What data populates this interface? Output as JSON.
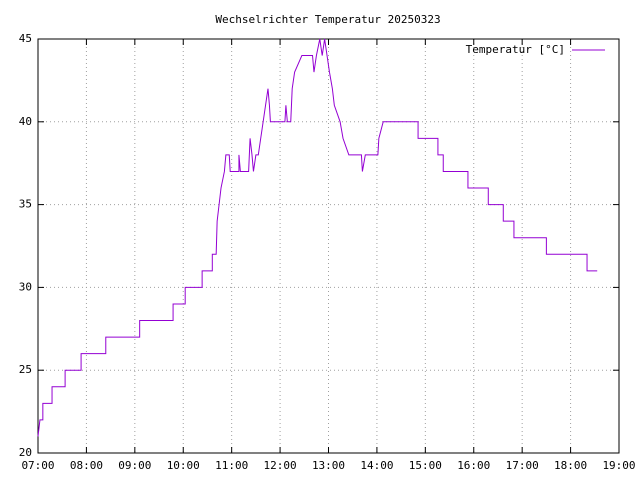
{
  "chart_data": {
    "type": "line",
    "title": "Wechselrichter Temperatur 20250323",
    "x": [
      7.0,
      7.04,
      7.1,
      7.1,
      7.29,
      7.29,
      7.56,
      7.56,
      7.89,
      7.89,
      8.4,
      8.4,
      9.1,
      9.1,
      9.79,
      9.79,
      10.04,
      10.04,
      10.39,
      10.39,
      10.6,
      10.6,
      10.68,
      10.7,
      10.78,
      10.85,
      10.88,
      10.95,
      10.97,
      11.15,
      11.15,
      11.18,
      11.35,
      11.38,
      11.42,
      11.45,
      11.5,
      11.55,
      11.6,
      11.65,
      11.7,
      11.75,
      11.78,
      11.8,
      12.1,
      12.12,
      12.15,
      12.22,
      12.25,
      12.3,
      12.45,
      12.67,
      12.7,
      12.75,
      12.82,
      12.87,
      12.92,
      12.97,
      13.02,
      13.08,
      13.12,
      13.24,
      13.3,
      13.42,
      13.68,
      13.7,
      13.76,
      14.02,
      14.04,
      14.13,
      14.85,
      14.85,
      15.26,
      15.26,
      15.37,
      15.37,
      15.88,
      15.88,
      16.3,
      16.3,
      16.61,
      16.61,
      16.83,
      16.83,
      17.5,
      17.5,
      18.34,
      18.34,
      18.55
    ],
    "series": [
      {
        "name": "Temperatur [°C]",
        "color": "#9400d3",
        "values": [
          21,
          22,
          22,
          23,
          23,
          24,
          24,
          25,
          25,
          26,
          26,
          27,
          27,
          28,
          28,
          29,
          29,
          30,
          30,
          31,
          31,
          32,
          32,
          34,
          36,
          37,
          38,
          38,
          37,
          37,
          38,
          37,
          37,
          39,
          38,
          37,
          38,
          38,
          39,
          40,
          41,
          42,
          41,
          40,
          40,
          41,
          40,
          40,
          42,
          43,
          44,
          44,
          43,
          44,
          45,
          44,
          45,
          44,
          43,
          42,
          41,
          40,
          39,
          38,
          38,
          37,
          38,
          38,
          39,
          40,
          40,
          39,
          39,
          38,
          38,
          37,
          37,
          36,
          36,
          35,
          35,
          34,
          34,
          33,
          33,
          32,
          32,
          31,
          31
        ]
      }
    ],
    "xlim": [
      7,
      19
    ],
    "xticks": [
      {
        "value": 7,
        "label": "07:00"
      },
      {
        "value": 8,
        "label": "08:00"
      },
      {
        "value": 9,
        "label": "09:00"
      },
      {
        "value": 10,
        "label": "10:00"
      },
      {
        "value": 11,
        "label": "11:00"
      },
      {
        "value": 12,
        "label": "12:00"
      },
      {
        "value": 13,
        "label": "13:00"
      },
      {
        "value": 14,
        "label": "14:00"
      },
      {
        "value": 15,
        "label": "15:00"
      },
      {
        "value": 16,
        "label": "16:00"
      },
      {
        "value": 17,
        "label": "17:00"
      },
      {
        "value": 18,
        "label": "18:00"
      },
      {
        "value": 19,
        "label": "19:00"
      }
    ],
    "ylim": [
      20,
      45
    ],
    "yticks": [
      20,
      25,
      30,
      35,
      40,
      45
    ],
    "grid": true,
    "legend": "top-right"
  }
}
